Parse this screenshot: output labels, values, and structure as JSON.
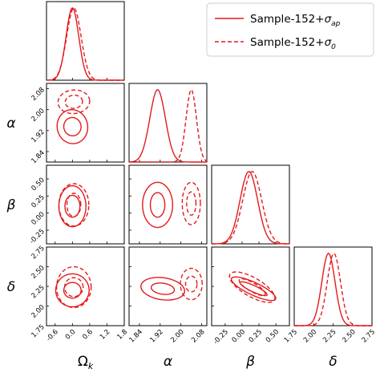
{
  "chart_data": {
    "type": "corner",
    "colors": {
      "line": "#e41a1c",
      "frame": "#000000",
      "background": "#ffffff"
    },
    "legend": {
      "position": "top-right",
      "entries": [
        {
          "label_main": "Sample-152+",
          "label_sub": "ap",
          "style": "solid"
        },
        {
          "label_main": "Sample-152+",
          "label_sub": "0",
          "style": "dashed"
        }
      ]
    },
    "parameters": [
      {
        "id": "omega",
        "symbol": "Ω",
        "subscript": "k",
        "range": [
          -0.9,
          1.8
        ],
        "ticks": [
          "-0.6",
          "0.0",
          "0.6",
          "1.2",
          "1.8"
        ],
        "tick_values": [
          -0.6,
          0.0,
          0.6,
          1.2,
          1.8
        ]
      },
      {
        "id": "alpha",
        "symbol": "α",
        "subscript": "",
        "range": [
          1.8,
          2.1
        ],
        "ticks": [
          "1.84",
          "1.92",
          "2.00",
          "2.08"
        ],
        "tick_values": [
          1.84,
          1.92,
          2.0,
          2.08
        ]
      },
      {
        "id": "beta",
        "symbol": "β",
        "subscript": "",
        "range": [
          -0.45,
          0.7
        ],
        "ticks": [
          "-0.25",
          "0.00",
          "0.25",
          "0.50"
        ],
        "tick_values": [
          -0.25,
          0.0,
          0.25,
          0.5
        ]
      },
      {
        "id": "delta",
        "symbol": "δ",
        "subscript": "",
        "range": [
          1.75,
          2.75
        ],
        "ticks": [
          "1.75",
          "2.00",
          "2.25",
          "2.50",
          "2.75"
        ],
        "tick_values": [
          1.75,
          2.0,
          2.25,
          2.5,
          2.75
        ]
      }
    ],
    "left_ticks": {
      "alpha": [
        "1.84",
        "1.92",
        "2.00",
        "2.08"
      ],
      "beta": [
        "-0.25",
        "0.00",
        "0.25",
        "0.50"
      ],
      "delta": [
        "1.75",
        "2.00",
        "2.25",
        "2.50",
        "2.75"
      ]
    },
    "series": [
      {
        "name": "Sample-152+σap",
        "style": "solid",
        "marginals": [
          {
            "mean": 0.0,
            "sd": 0.22
          },
          {
            "mean": 1.91,
            "sd": 0.03
          },
          {
            "mean": 0.1,
            "sd": 0.13
          },
          {
            "mean": 2.19,
            "sd": 0.085
          }
        ],
        "contours": {
          "alpha-omega": [
            {
              "cx": 0.0,
              "cy": 1.935,
              "rx": 0.3,
              "ry": 0.035,
              "rot": -10
            },
            {
              "cx": 0.0,
              "cy": 1.935,
              "rx": 0.53,
              "ry": 0.065,
              "rot": -10
            }
          ],
          "beta-omega": [
            {
              "cx": 0.0,
              "cy": 0.1,
              "rx": 0.26,
              "ry": 0.16,
              "rot": 0
            },
            {
              "cx": 0.0,
              "cy": 0.1,
              "rx": 0.47,
              "ry": 0.3,
              "rot": 0
            }
          ],
          "delta-omega": [
            {
              "cx": 0.0,
              "cy": 2.2,
              "rx": 0.3,
              "ry": 0.1,
              "rot": 0
            },
            {
              "cx": 0.0,
              "cy": 2.2,
              "rx": 0.58,
              "ry": 0.21,
              "rot": 0
            }
          ],
          "beta-alpha": [
            {
              "cx": 1.91,
              "cy": 0.12,
              "rx": 0.028,
              "ry": 0.18,
              "rot": 0
            },
            {
              "cx": 1.91,
              "cy": 0.12,
              "rx": 0.058,
              "ry": 0.33,
              "rot": 0
            }
          ],
          "delta-alpha": [
            {
              "cx": 1.93,
              "cy": 2.22,
              "rx": 0.045,
              "ry": 0.07,
              "rot": 8
            },
            {
              "cx": 1.93,
              "cy": 2.22,
              "rx": 0.085,
              "ry": 0.14,
              "rot": 8
            }
          ],
          "delta-beta": [
            {
              "cx": 0.17,
              "cy": 2.22,
              "rx": 0.22,
              "ry": 0.04,
              "rot": 25
            },
            {
              "cx": 0.17,
              "cy": 2.22,
              "rx": 0.36,
              "ry": 0.08,
              "rot": 25
            }
          ]
        }
      },
      {
        "name": "Sample-152+σ0",
        "style": "dashed",
        "marginals": [
          {
            "mean": 0.05,
            "sd": 0.25
          },
          {
            "mean": 2.04,
            "sd": 0.02
          },
          {
            "mean": 0.15,
            "sd": 0.14
          },
          {
            "mean": 2.26,
            "sd": 0.085
          }
        ],
        "contours": {
          "alpha-omega": [
            {
              "cx": 0.05,
              "cy": 2.03,
              "rx": 0.3,
              "ry": 0.025,
              "rot": -5
            },
            {
              "cx": 0.05,
              "cy": 2.03,
              "rx": 0.55,
              "ry": 0.045,
              "rot": -5
            }
          ],
          "beta-omega": [
            {
              "cx": 0.05,
              "cy": 0.12,
              "rx": 0.24,
              "ry": 0.17,
              "rot": 0
            },
            {
              "cx": 0.05,
              "cy": 0.12,
              "rx": 0.52,
              "ry": 0.31,
              "rot": 0
            }
          ],
          "delta-omega": [
            {
              "cx": 0.05,
              "cy": 2.24,
              "rx": 0.32,
              "ry": 0.12,
              "rot": 0
            },
            {
              "cx": 0.05,
              "cy": 2.24,
              "rx": 0.6,
              "ry": 0.26,
              "rot": 0
            }
          ],
          "beta-alpha": [
            {
              "cx": 2.04,
              "cy": 0.14,
              "rx": 0.018,
              "ry": 0.17,
              "rot": 0
            },
            {
              "cx": 2.04,
              "cy": 0.14,
              "rx": 0.035,
              "ry": 0.31,
              "rot": 0
            }
          ],
          "delta-alpha": [
            {
              "cx": 2.04,
              "cy": 2.28,
              "rx": 0.022,
              "ry": 0.1,
              "rot": 0
            },
            {
              "cx": 2.04,
              "cy": 2.28,
              "rx": 0.042,
              "ry": 0.2,
              "rot": 0
            }
          ],
          "delta-beta": [
            {
              "cx": 0.15,
              "cy": 2.24,
              "rx": 0.22,
              "ry": 0.055,
              "rot": 30
            },
            {
              "cx": 0.15,
              "cy": 2.24,
              "rx": 0.38,
              "ry": 0.12,
              "rot": 30
            }
          ]
        }
      }
    ]
  }
}
